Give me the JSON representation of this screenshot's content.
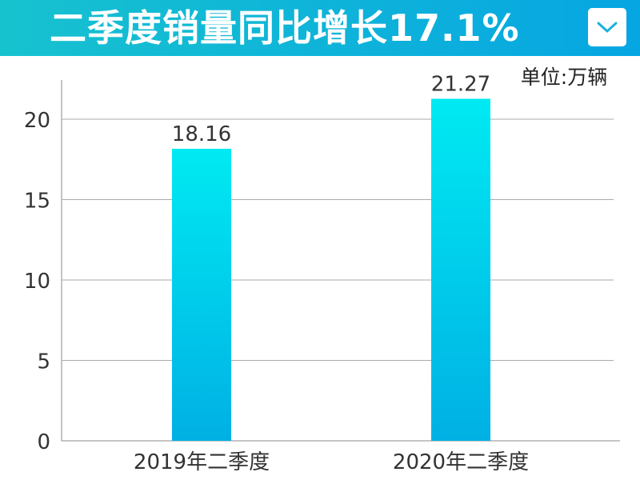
{
  "header": {
    "title": "二季度销量同比增长17.1%",
    "dropdown_icon": "chevron-down-icon"
  },
  "chart_data": {
    "type": "bar",
    "title": "二季度销量同比增长17.1%",
    "unit_label": "单位:万辆",
    "categories": [
      "2019年二季度",
      "2020年二季度"
    ],
    "values": [
      18.16,
      21.27
    ],
    "value_labels": [
      "18.16",
      "21.27"
    ],
    "yticks": [
      "0",
      "5",
      "10",
      "15",
      "20"
    ],
    "ylim": [
      0,
      22.5
    ],
    "grid": true,
    "colors": {
      "bar_top": "#00eaf2",
      "bar_bottom": "#00b0e4",
      "grid": "#aaaaaa"
    }
  }
}
